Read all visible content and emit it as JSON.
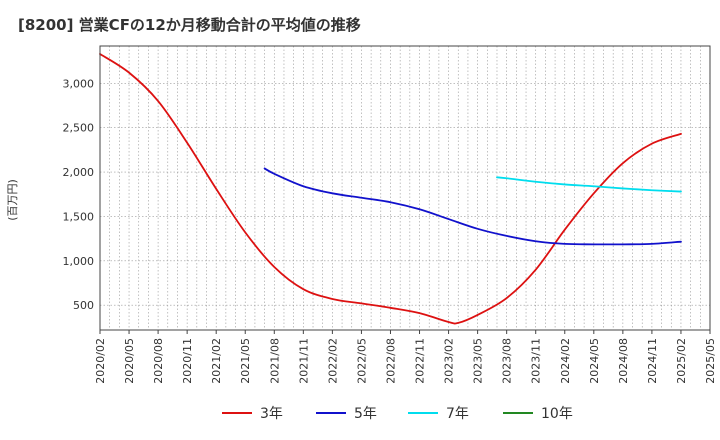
{
  "chart_data": {
    "type": "line",
    "title": "[8200]  営業CFの12か月移動合計の平均値の推移",
    "ylabel": "(百万円)",
    "xlabel": "",
    "ylim": [
      220,
      3420
    ],
    "y_ticks": [
      500,
      1000,
      1500,
      2000,
      2500,
      3000
    ],
    "y_tick_labels": [
      "500",
      "1,000",
      "1,500",
      "2,000",
      "2,500",
      "3,000"
    ],
    "x_tick_labels": [
      "2020/02",
      "2020/05",
      "2020/08",
      "2020/11",
      "2021/02",
      "2021/05",
      "2021/08",
      "2021/11",
      "2022/02",
      "2022/05",
      "2022/08",
      "2022/11",
      "2023/02",
      "2023/05",
      "2023/08",
      "2023/11",
      "2024/02",
      "2024/05",
      "2024/08",
      "2024/11",
      "2025/02",
      "2025/05"
    ],
    "grid": true,
    "legend_position": "bottom",
    "series": [
      {
        "name": "3年",
        "color": "#dd1111",
        "x": [
          "2020/02",
          "2020/05",
          "2020/08",
          "2020/11",
          "2021/02",
          "2021/05",
          "2021/08",
          "2021/11",
          "2022/02",
          "2022/05",
          "2022/08",
          "2022/11",
          "2023/02",
          "2023/03",
          "2023/05",
          "2023/08",
          "2023/11",
          "2024/02",
          "2024/05",
          "2024/08",
          "2024/11",
          "2025/02"
        ],
        "values": [
          3330,
          3120,
          2800,
          2330,
          1810,
          1320,
          930,
          680,
          570,
          520,
          470,
          410,
          310,
          300,
          390,
          580,
          900,
          1350,
          1760,
          2100,
          2320,
          2430
        ]
      },
      {
        "name": "5年",
        "color": "#1111cc",
        "x": [
          "2021/07",
          "2021/08",
          "2021/11",
          "2022/02",
          "2022/05",
          "2022/08",
          "2022/11",
          "2023/02",
          "2023/05",
          "2023/08",
          "2023/11",
          "2024/02",
          "2024/05",
          "2024/08",
          "2024/11",
          "2025/02"
        ],
        "values": [
          2040,
          1980,
          1840,
          1760,
          1710,
          1660,
          1580,
          1470,
          1360,
          1280,
          1220,
          1190,
          1185,
          1185,
          1190,
          1215
        ]
      },
      {
        "name": "7年",
        "color": "#00ddee",
        "x": [
          "2023/07",
          "2023/08",
          "2023/11",
          "2024/02",
          "2024/05",
          "2024/08",
          "2024/11",
          "2025/02"
        ],
        "values": [
          1940,
          1930,
          1890,
          1860,
          1840,
          1815,
          1795,
          1780
        ]
      },
      {
        "name": "10年",
        "color": "#228822",
        "x": [],
        "values": []
      }
    ]
  }
}
